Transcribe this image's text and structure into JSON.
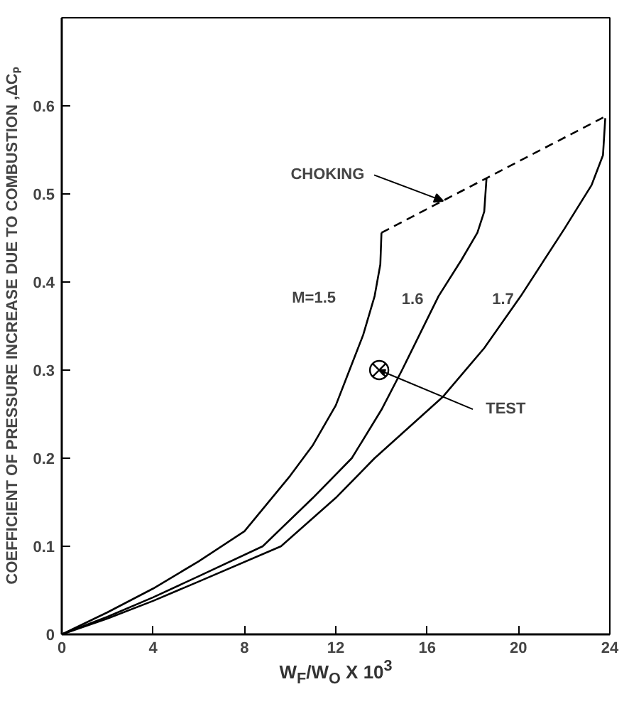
{
  "chart_data": {
    "type": "line",
    "xlabel": "W$_{F}$/W$_{O}$ X 10$^{3}$",
    "ylabel": "COEFFICIENT OF PRESSURE INCREASE DUE TO COMBUSTION ,ΔCₚ",
    "xlim": [
      0,
      24
    ],
    "ylim": [
      0,
      0.7
    ],
    "xticks": [
      0,
      4,
      8,
      12,
      16,
      20,
      24
    ],
    "yticks": [
      0,
      0.1,
      0.2,
      0.3,
      0.4,
      0.5,
      0.6
    ],
    "grid": false,
    "series": [
      {
        "color": "#000000",
        "line_style": "solid",
        "x": [
          0,
          2,
          4,
          6,
          8,
          10,
          11,
          12,
          12.6,
          13.2,
          13.7,
          13.95,
          14.0
        ],
        "values": [
          0,
          0.025,
          0.052,
          0.083,
          0.117,
          0.18,
          0.215,
          0.26,
          0.3,
          0.34,
          0.384,
          0.42,
          0.456
        ]
      },
      {
        "color": "#000000",
        "line_style": "solid",
        "x": [
          0,
          2,
          4,
          6,
          8.8,
          11,
          12.7,
          14,
          14.9,
          16.5,
          17.5,
          18.2,
          18.5,
          18.6
        ],
        "values": [
          0,
          0.02,
          0.042,
          0.066,
          0.1,
          0.155,
          0.2,
          0.255,
          0.3,
          0.384,
          0.425,
          0.456,
          0.48,
          0.518
        ]
      },
      {
        "color": "#000000",
        "line_style": "solid",
        "x": [
          0,
          2,
          4,
          6,
          9.6,
          12,
          13.7,
          16.7,
          18.5,
          20.1,
          22,
          23.2,
          23.7,
          23.8
        ],
        "values": [
          0,
          0.018,
          0.038,
          0.06,
          0.1,
          0.155,
          0.2,
          0.27,
          0.325,
          0.384,
          0.46,
          0.51,
          0.544,
          0.586
        ]
      },
      {
        "color": "#000000",
        "line_style": "dashed",
        "x": [
          14.0,
          23.8
        ],
        "values": [
          0.456,
          0.588
        ]
      },
      {
        "type": "scatter",
        "color": "#000000",
        "marker": "cross",
        "x": [
          13.9
        ],
        "values": [
          0.3
        ]
      }
    ],
    "annotations": [
      {
        "text": "CHOKING",
        "x": 16.7,
        "y": 0.492
      },
      "M=1.5",
      "1.6",
      "1.7",
      {
        "text": "TEST",
        "x": 13.9,
        "y": 0.3
      }
    ]
  }
}
